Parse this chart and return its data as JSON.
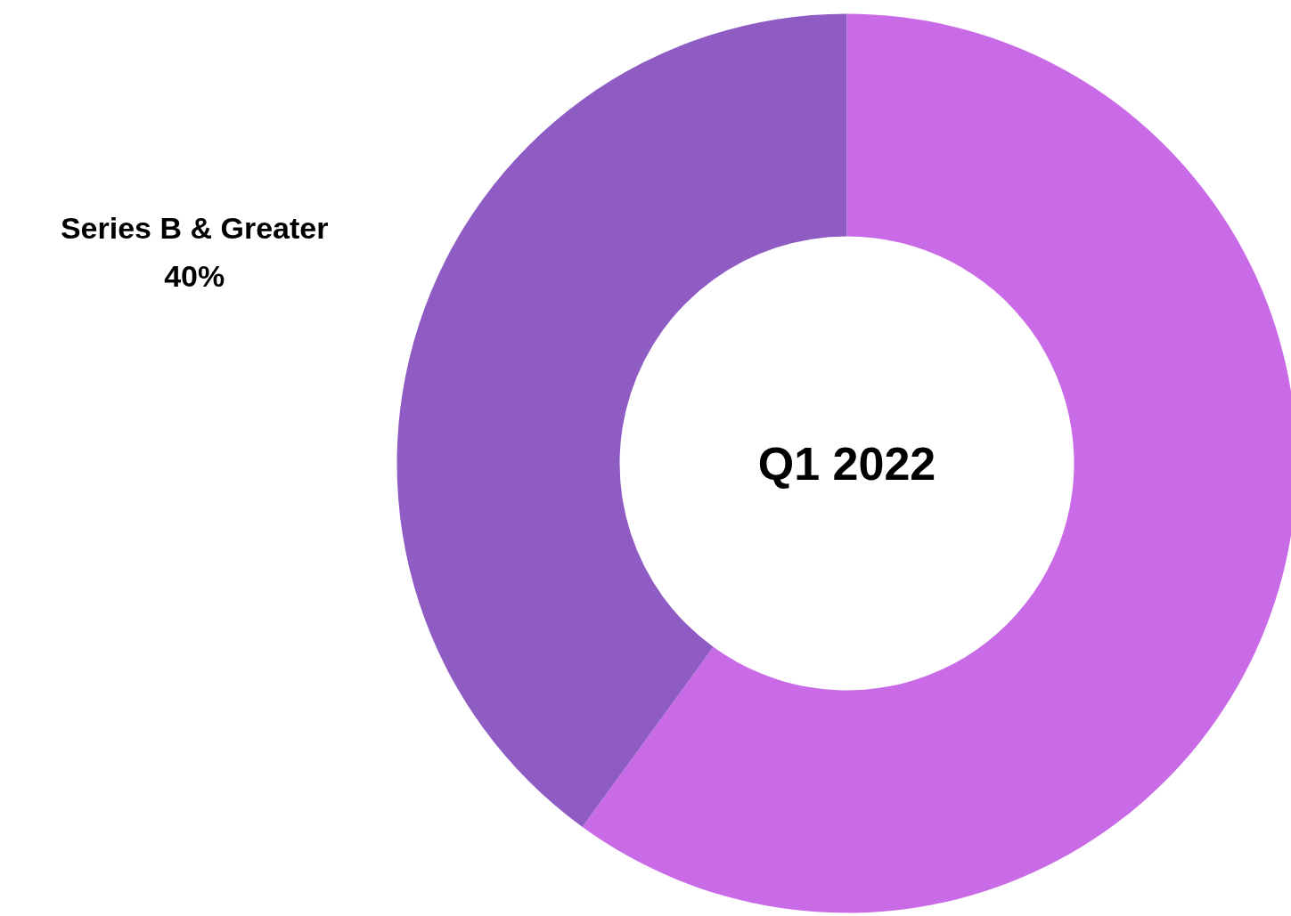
{
  "chart_data": {
    "type": "donut",
    "categories": [
      null,
      "Series B & Greater"
    ],
    "values": [
      60,
      40
    ],
    "colors": [
      "#c96ae6",
      "#8f5cc4"
    ],
    "value_labels": [
      null,
      "40%"
    ],
    "annotations": [
      "Q1 2022"
    ]
  }
}
